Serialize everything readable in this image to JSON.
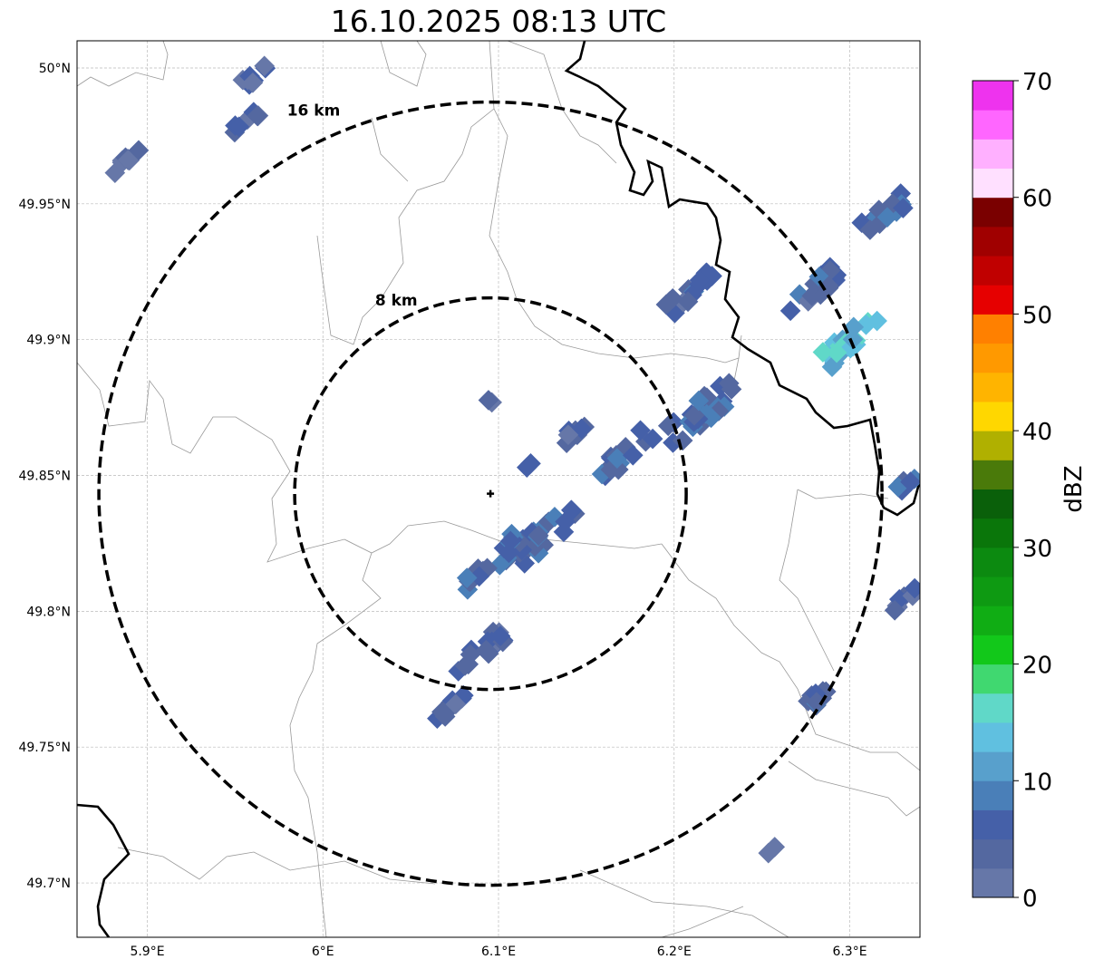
{
  "title": "16.10.2025 08:13 UTC",
  "map": {
    "lon_range": [
      5.86,
      6.34
    ],
    "lat_range": [
      49.68,
      50.01
    ],
    "lon_ticks": [
      {
        "v": 5.9,
        "label": "5.9°E"
      },
      {
        "v": 6.0,
        "label": "6°E"
      },
      {
        "v": 6.1,
        "label": "6.1°E"
      },
      {
        "v": 6.2,
        "label": "6.2°E"
      },
      {
        "v": 6.3,
        "label": "6.3°E"
      }
    ],
    "lat_ticks": [
      {
        "v": 50.0,
        "label": "50°N"
      },
      {
        "v": 49.95,
        "label": "49.95°N"
      },
      {
        "v": 49.9,
        "label": "49.9°N"
      },
      {
        "v": 49.85,
        "label": "49.85°N"
      },
      {
        "v": 49.8,
        "label": "49.8°N"
      },
      {
        "v": 49.75,
        "label": "49.75°N"
      },
      {
        "v": 49.7,
        "label": "49.7°N"
      }
    ],
    "radar_site": {
      "lon": 6.0954,
      "lat": 49.8433
    },
    "range_rings": [
      {
        "km": 8,
        "label": "8 km"
      },
      {
        "km": 16,
        "label": "16 km"
      }
    ],
    "echo_clusters": [
      {
        "lon": 5.963,
        "lat": 49.998,
        "n": 8,
        "dbz": 4
      },
      {
        "lon": 5.955,
        "lat": 49.98,
        "n": 8,
        "dbz": 4
      },
      {
        "lon": 5.888,
        "lat": 49.965,
        "n": 10,
        "dbz": 3
      },
      {
        "lon": 6.321,
        "lat": 49.947,
        "n": 16,
        "dbz": 7
      },
      {
        "lon": 6.21,
        "lat": 49.918,
        "n": 16,
        "dbz": 5
      },
      {
        "lon": 6.28,
        "lat": 49.918,
        "n": 18,
        "dbz": 5
      },
      {
        "lon": 6.301,
        "lat": 49.9,
        "n": 20,
        "dbz": 14
      },
      {
        "lon": 6.215,
        "lat": 49.873,
        "n": 26,
        "dbz": 6
      },
      {
        "lon": 6.172,
        "lat": 49.858,
        "n": 18,
        "dbz": 6
      },
      {
        "lon": 6.141,
        "lat": 49.865,
        "n": 8,
        "dbz": 4
      },
      {
        "lon": 6.126,
        "lat": 49.828,
        "n": 24,
        "dbz": 6
      },
      {
        "lon": 6.097,
        "lat": 49.818,
        "n": 22,
        "dbz": 6
      },
      {
        "lon": 6.089,
        "lat": 49.785,
        "n": 16,
        "dbz": 4
      },
      {
        "lon": 6.074,
        "lat": 49.765,
        "n": 10,
        "dbz": 4
      },
      {
        "lon": 6.285,
        "lat": 49.77,
        "n": 10,
        "dbz": 5
      },
      {
        "lon": 6.332,
        "lat": 49.805,
        "n": 8,
        "dbz": 4
      },
      {
        "lon": 6.334,
        "lat": 49.848,
        "n": 6,
        "dbz": 7
      },
      {
        "lon": 6.254,
        "lat": 49.712,
        "n": 2,
        "dbz": 4
      },
      {
        "lon": 6.095,
        "lat": 49.877,
        "n": 2,
        "dbz": 3
      },
      {
        "lon": 6.115,
        "lat": 49.853,
        "n": 2,
        "dbz": 4
      }
    ]
  },
  "colorbar": {
    "label": "dBZ",
    "min": 0,
    "max": 70,
    "step": 2.5,
    "ticks": [
      "0",
      "10",
      "20",
      "30",
      "40",
      "50",
      "60",
      "70"
    ],
    "colors": [
      "#6677a8",
      "#5468a0",
      "#4560a8",
      "#4a7fb8",
      "#58a0cc",
      "#60c0e0",
      "#60d8c8",
      "#40d870",
      "#12c81a",
      "#10ad14",
      "#0e9a12",
      "#0c8a10",
      "#0a760a",
      "#0a600a",
      "#4a7a0a",
      "#b0b000",
      "#ffd700",
      "#ffb400",
      "#ff9900",
      "#ff8000",
      "#e60000",
      "#c00000",
      "#a00000",
      "#7a0000",
      "#ffe0ff",
      "#ffb0ff",
      "#ff66ff",
      "#ee33ee"
    ]
  }
}
